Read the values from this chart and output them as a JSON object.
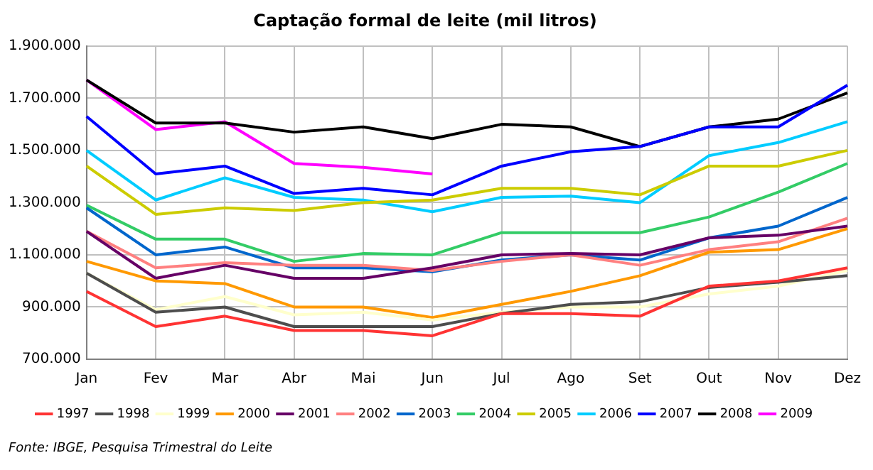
{
  "chart_data": {
    "type": "line",
    "title": "Captação formal de leite (mil litros)",
    "categories": [
      "Jan",
      "Fev",
      "Mar",
      "Abr",
      "Mai",
      "Jun",
      "Jul",
      "Ago",
      "Set",
      "Out",
      "Nov",
      "Dez"
    ],
    "series": [
      {
        "name": "1997",
        "color": "#ff3333",
        "values": [
          960000,
          825000,
          865000,
          810000,
          810000,
          790000,
          875000,
          875000,
          865000,
          980000,
          1000000,
          1050000
        ]
      },
      {
        "name": "1998",
        "color": "#4d4d4d",
        "values": [
          1030000,
          880000,
          900000,
          825000,
          825000,
          825000,
          875000,
          910000,
          920000,
          975000,
          995000,
          1020000
        ]
      },
      {
        "name": "1999",
        "color": "#ffffcc",
        "values": [
          1030000,
          890000,
          940000,
          870000,
          880000,
          850000,
          880000,
          900000,
          900000,
          950000,
          980000,
          1040000
        ]
      },
      {
        "name": "2000",
        "color": "#ff9900",
        "values": [
          1075000,
          1000000,
          990000,
          900000,
          900000,
          860000,
          910000,
          960000,
          1020000,
          1110000,
          1120000,
          1200000
        ]
      },
      {
        "name": "2001",
        "color": "#660066",
        "values": [
          1190000,
          1010000,
          1060000,
          1010000,
          1010000,
          1050000,
          1100000,
          1105000,
          1100000,
          1165000,
          1175000,
          1210000
        ]
      },
      {
        "name": "2002",
        "color": "#ff8080",
        "values": [
          1190000,
          1050000,
          1070000,
          1060000,
          1060000,
          1040000,
          1075000,
          1100000,
          1060000,
          1120000,
          1150000,
          1240000
        ]
      },
      {
        "name": "2003",
        "color": "#0066cc",
        "values": [
          1280000,
          1100000,
          1130000,
          1050000,
          1050000,
          1035000,
          1080000,
          1100000,
          1080000,
          1165000,
          1210000,
          1320000
        ]
      },
      {
        "name": "2004",
        "color": "#33cc66",
        "values": [
          1290000,
          1160000,
          1160000,
          1075000,
          1105000,
          1100000,
          1185000,
          1185000,
          1185000,
          1245000,
          1340000,
          1450000
        ]
      },
      {
        "name": "2005",
        "color": "#cccc00",
        "values": [
          1440000,
          1255000,
          1280000,
          1270000,
          1300000,
          1310000,
          1355000,
          1355000,
          1330000,
          1440000,
          1440000,
          1500000
        ]
      },
      {
        "name": "2006",
        "color": "#00ccff",
        "values": [
          1500000,
          1310000,
          1395000,
          1320000,
          1310000,
          1265000,
          1320000,
          1325000,
          1300000,
          1480000,
          1530000,
          1610000
        ]
      },
      {
        "name": "2007",
        "color": "#0000ff",
        "values": [
          1630000,
          1410000,
          1440000,
          1335000,
          1355000,
          1330000,
          1440000,
          1495000,
          1515000,
          1590000,
          1590000,
          1750000
        ]
      },
      {
        "name": "2008",
        "color": "#000000",
        "values": [
          1770000,
          1605000,
          1605000,
          1570000,
          1590000,
          1545000,
          1600000,
          1590000,
          1515000,
          1590000,
          1620000,
          1720000
        ]
      },
      {
        "name": "2009",
        "color": "#ff00ff",
        "values": [
          1770000,
          1580000,
          1610000,
          1450000,
          1435000,
          1410000,
          null,
          null,
          null,
          null,
          null,
          null
        ]
      }
    ],
    "ylim": [
      700000,
      1900000
    ],
    "yticks": [
      {
        "value": 700000,
        "label": "700.000"
      },
      {
        "value": 900000,
        "label": "900.000"
      },
      {
        "value": 1100000,
        "label": "1.100.000"
      },
      {
        "value": 1300000,
        "label": "1.300.000"
      },
      {
        "value": 1500000,
        "label": "1.500.000"
      },
      {
        "value": 1700000,
        "label": "1.700.000"
      },
      {
        "value": 1900000,
        "label": "1.900.000"
      }
    ],
    "grid": true,
    "legend": "bottom",
    "marker": "none",
    "line_style": "solid",
    "annotations": [
      "Fonte: IBGE, Pesquisa Trimestral do Leite"
    ]
  }
}
